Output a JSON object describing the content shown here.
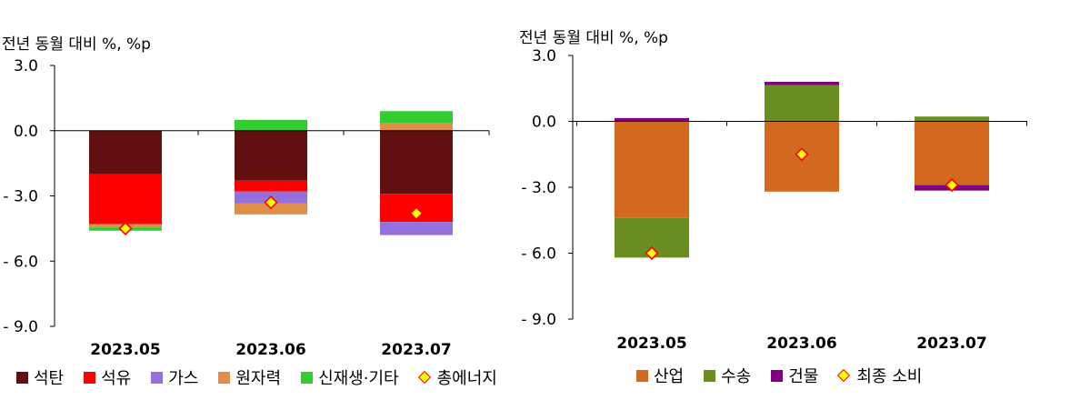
{
  "chart_data": [
    {
      "type": "bar",
      "stacked": true,
      "unit_label": "전년 동월 대비 %, %p",
      "categories": [
        "2023.05",
        "2023.06",
        "2023.07"
      ],
      "ylim": [
        -9.0,
        3.0
      ],
      "yticks": [
        "3.0",
        "0.0",
        "- 3.0",
        "- 6.0",
        "- 9.0"
      ],
      "ytick_values": [
        3,
        0,
        -3,
        -6,
        -9
      ],
      "series": [
        {
          "name": "석탄",
          "color": "#62100f",
          "values": [
            -2.0,
            -2.3,
            -2.9
          ]
        },
        {
          "name": "석유",
          "color": "#ff0000",
          "values": [
            -2.3,
            -0.5,
            -1.3
          ]
        },
        {
          "name": "가스",
          "color": "#9370db",
          "values": [
            0.0,
            -0.55,
            -0.6
          ]
        },
        {
          "name": "원자력",
          "color": "#e08f4a",
          "values": [
            -0.15,
            -0.5,
            0.35
          ]
        },
        {
          "name": "신재생·기타",
          "color": "#33cc33",
          "values": [
            -0.15,
            0.5,
            0.55
          ]
        }
      ],
      "total": {
        "name": "총에너지",
        "values": [
          -4.5,
          -3.3,
          -3.8
        ]
      }
    },
    {
      "type": "bar",
      "stacked": true,
      "unit_label": "전년 동월 대비 %, %p",
      "categories": [
        "2023.05",
        "2023.06",
        "2023.07"
      ],
      "ylim": [
        -9.0,
        3.0
      ],
      "yticks": [
        "3.0",
        "0.0",
        "- 3.0",
        "- 6.0",
        "- 9.0"
      ],
      "ytick_values": [
        3,
        0,
        -3,
        -6,
        -9
      ],
      "series": [
        {
          "name": "산업",
          "color": "#d2691e",
          "values": [
            -4.4,
            -3.2,
            -2.9
          ]
        },
        {
          "name": "수송",
          "color": "#6b8e23",
          "values": [
            -1.8,
            1.65,
            0.22
          ]
        },
        {
          "name": "건물",
          "color": "#800080",
          "values": [
            0.15,
            0.15,
            -0.25
          ]
        }
      ],
      "total": {
        "name": "최종 소비",
        "values": [
          -6.0,
          -1.5,
          -2.9
        ]
      }
    }
  ]
}
